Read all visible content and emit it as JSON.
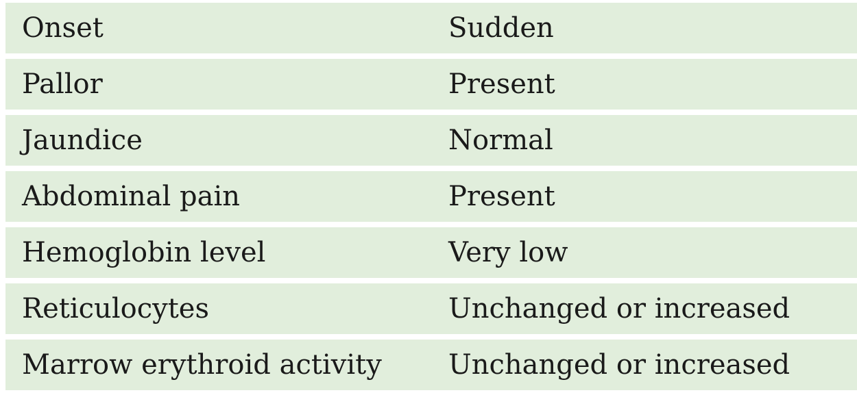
{
  "rows": [
    {
      "label": "Onset",
      "value": "Sudden"
    },
    {
      "label": "Pallor",
      "value": "Present"
    },
    {
      "label": "Jaundice",
      "value": "Normal"
    },
    {
      "label": "Abdominal pain",
      "value": "Present"
    },
    {
      "label": "Hemoglobin level",
      "value": "Very low"
    },
    {
      "label": "Reticulocytes",
      "value": "Unchanged or increased"
    },
    {
      "label": "Marrow erythroid activity",
      "value": "Unchanged or increased"
    }
  ],
  "colors": {
    "row_background": "#e1eedc",
    "text": "#1a1a1a"
  }
}
